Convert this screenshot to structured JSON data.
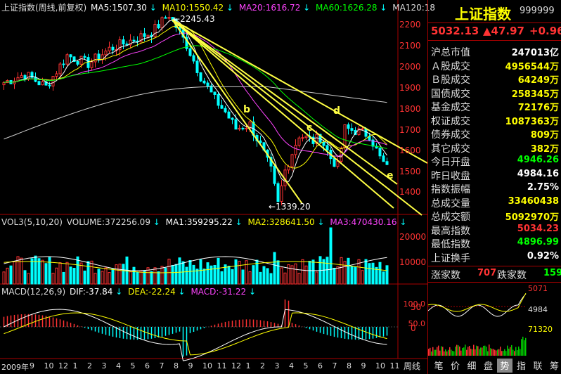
{
  "header": {
    "title": "上证指数(周线,前复权)",
    "ma5": "MA5:1507.30",
    "ma10": "MA10:1550.42",
    "ma20": "MA20:1616.72",
    "ma60": "MA60:1626.28",
    "ma120": "MA120:18"
  },
  "volume_header": {
    "label": "VOL3(5,10,20)",
    "volume": "VOLUME:372256.09",
    "ma1": "MA1:359295.22",
    "ma2": "MA2:328641.50",
    "ma3": "MA3:470430.16"
  },
  "macd_header": {
    "label": "MACD(12,26,9)",
    "dif": "DIF:-37.84",
    "dea": "DEA:-22.24",
    "macd": "MACD:-31.22"
  },
  "price_axis": [
    "2200",
    "2100",
    "2000",
    "1900",
    "1800",
    "1700",
    "1600",
    "1500",
    "1400"
  ],
  "volume_axis": [
    "20000",
    "10000"
  ],
  "macd_axis": [
    "50",
    "0"
  ],
  "annotations": {
    "high": "2245.43",
    "low": "1339.20",
    "labels": [
      "b",
      "c",
      "d",
      "e"
    ]
  },
  "date_axis": [
    "2009年",
    "9",
    "10",
    "12",
    "1",
    "2",
    "3",
    "4",
    "5",
    "6",
    "7",
    "8",
    "9",
    "10",
    "11",
    "12",
    "1",
    "2",
    "3",
    "4",
    "5",
    "6",
    "7",
    "8",
    "9",
    "10",
    "11"
  ],
  "period_label": "周线",
  "quote": {
    "name": "上证指数",
    "code": "999999",
    "price": "5032.13",
    "change": "▲47.97",
    "change_pct": "+0.96"
  },
  "stats": [
    {
      "label": "沪总市值",
      "value": "247013亿",
      "color": "#ffffff"
    },
    {
      "label": "Ａ股成交",
      "value": "4956544万",
      "color": "#ffff00"
    },
    {
      "label": "Ｂ股成交",
      "value": "64249万",
      "color": "#ffff00"
    },
    {
      "label": "国债成交",
      "value": "258345万",
      "color": "#ffff00"
    },
    {
      "label": "基金成交",
      "value": "72176万",
      "color": "#ffff00"
    },
    {
      "label": "权证成交",
      "value": "1087363万",
      "color": "#ffff00"
    },
    {
      "label": "债券成交",
      "value": "809万",
      "color": "#ffff00"
    },
    {
      "label": "其它成交",
      "value": "382万",
      "color": "#ffff00"
    },
    {
      "label": "今日开盘",
      "value": "4946.26",
      "color": "#00ff00"
    },
    {
      "label": "昨日收盘",
      "value": "4984.16",
      "color": "#ffffff"
    },
    {
      "label": "指数振幅",
      "value": "2.75%",
      "color": "#ffffff"
    },
    {
      "label": "总成交量",
      "value": "33460438",
      "color": "#ffff00"
    },
    {
      "label": "总成交额",
      "value": "5092970万",
      "color": "#ffff00"
    },
    {
      "label": "最高指数",
      "value": "5034.23",
      "color": "#ff3333"
    },
    {
      "label": "最低指数",
      "value": "4896.99",
      "color": "#00ff00"
    },
    {
      "label": "上证换手",
      "value": "0.92%",
      "color": "#ffffff"
    }
  ],
  "breadth": {
    "up_label": "涨家数",
    "up_value": "707",
    "down_label": "跌家数",
    "down_value": "159"
  },
  "mini_chart": {
    "axis": [
      "5071",
      "4984",
      "71320"
    ],
    "left_axis": [
      "100.0",
      "50.0"
    ]
  },
  "tabs": [
    "笔",
    "价",
    "细",
    "盘",
    "势",
    "指",
    "联",
    "筹"
  ],
  "active_tab": "势",
  "colors": {
    "up": "#ff3333",
    "down": "#00ffff",
    "ma5": "#ffffff",
    "ma10": "#ffff00",
    "ma20": "#ff44ff",
    "ma60": "#00ff00",
    "ma120": "#cccccc",
    "trendline": "#ffff44"
  }
}
